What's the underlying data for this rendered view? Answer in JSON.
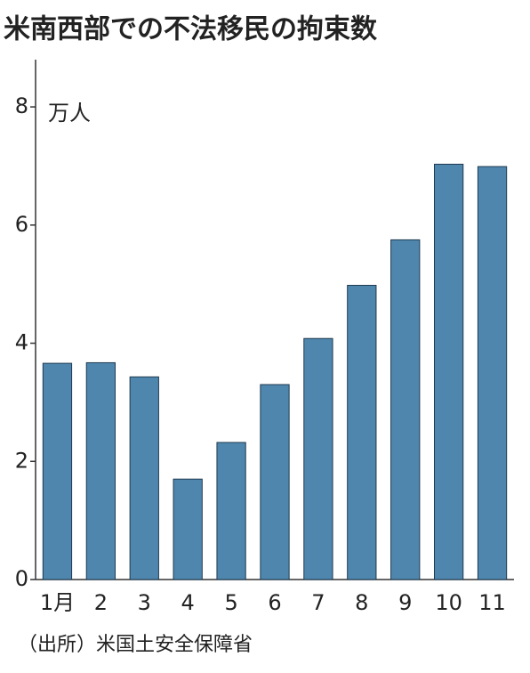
{
  "chart_data": {
    "type": "bar",
    "title": "米南西部での不法移民の拘束数",
    "y_unit": "万人",
    "categories": [
      "1月",
      "2",
      "3",
      "4",
      "5",
      "6",
      "7",
      "8",
      "9",
      "10",
      "11"
    ],
    "values": [
      3.66,
      3.67,
      3.43,
      1.7,
      2.32,
      3.3,
      4.08,
      4.98,
      5.75,
      7.03,
      6.99
    ],
    "color": "#4e86ae",
    "ylim": [
      0,
      8.8
    ],
    "yticks": [
      0,
      2,
      4,
      6,
      8
    ],
    "grid": false,
    "source": "（出所）米国土安全保障省"
  }
}
